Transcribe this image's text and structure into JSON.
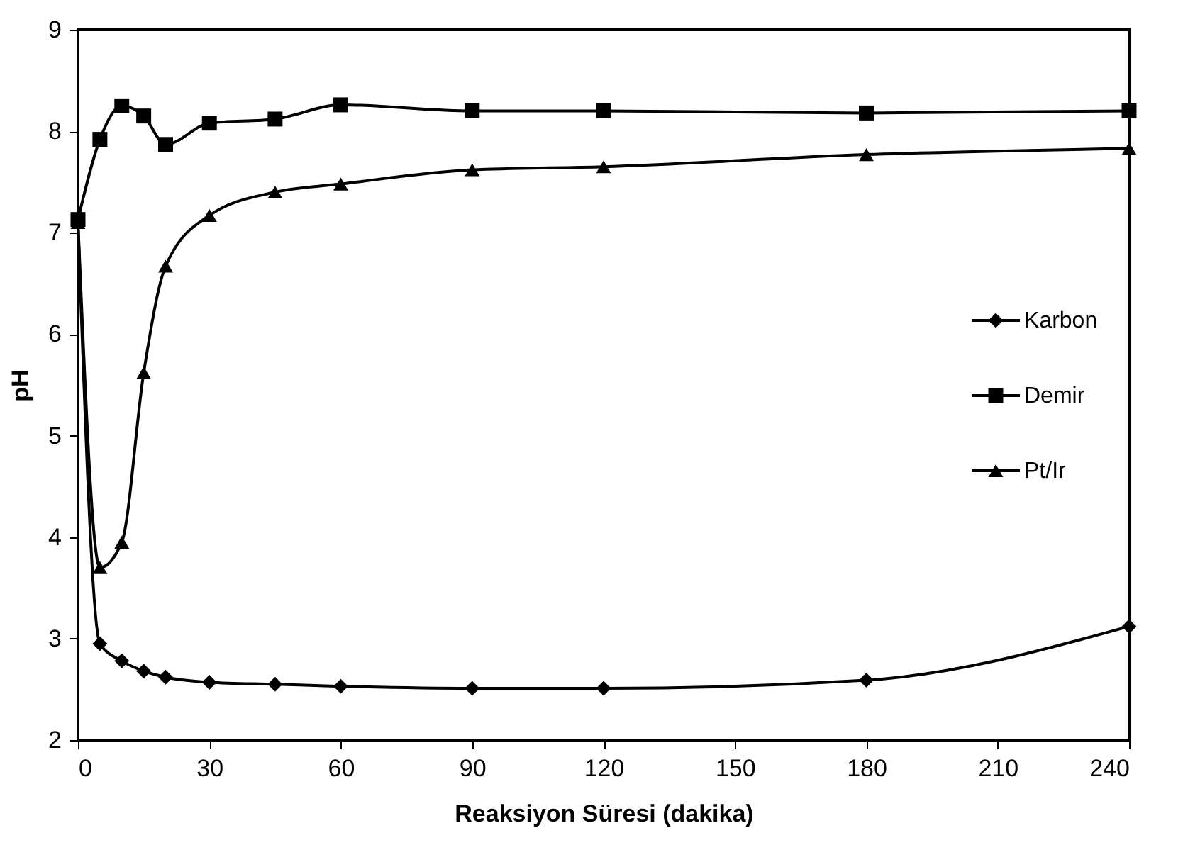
{
  "chart_data": {
    "type": "line",
    "xlabel": "Reaksiyon Süresi (dakika)",
    "ylabel": "pH",
    "x": [
      0,
      5,
      10,
      15,
      20,
      30,
      45,
      60,
      90,
      120,
      180,
      240
    ],
    "series": [
      {
        "name": "Karbon",
        "color": "#000000",
        "marker": "diamond",
        "values": [
          7.1,
          2.95,
          2.78,
          2.68,
          2.62,
          2.57,
          2.55,
          2.53,
          2.51,
          2.51,
          2.59,
          3.12
        ]
      },
      {
        "name": "Demir",
        "color": "#000000",
        "marker": "square",
        "values": [
          7.13,
          7.92,
          8.25,
          8.15,
          7.87,
          8.08,
          8.12,
          8.26,
          8.2,
          8.2,
          8.18,
          8.2
        ]
      },
      {
        "name": "Pt/Ir",
        "color": "#000000",
        "marker": "triangle",
        "values": [
          7.1,
          3.7,
          3.95,
          5.62,
          6.67,
          7.17,
          7.4,
          7.48,
          7.62,
          7.65,
          7.77,
          7.83
        ]
      }
    ],
    "xlim": [
      0,
      240
    ],
    "xticks": [
      0,
      30,
      60,
      90,
      120,
      150,
      180,
      210,
      240
    ],
    "ylim": [
      2,
      9
    ],
    "yticks": [
      2,
      3,
      4,
      5,
      6,
      7,
      8,
      9
    ],
    "grid": false,
    "legend": "right",
    "line_style": "solid"
  }
}
